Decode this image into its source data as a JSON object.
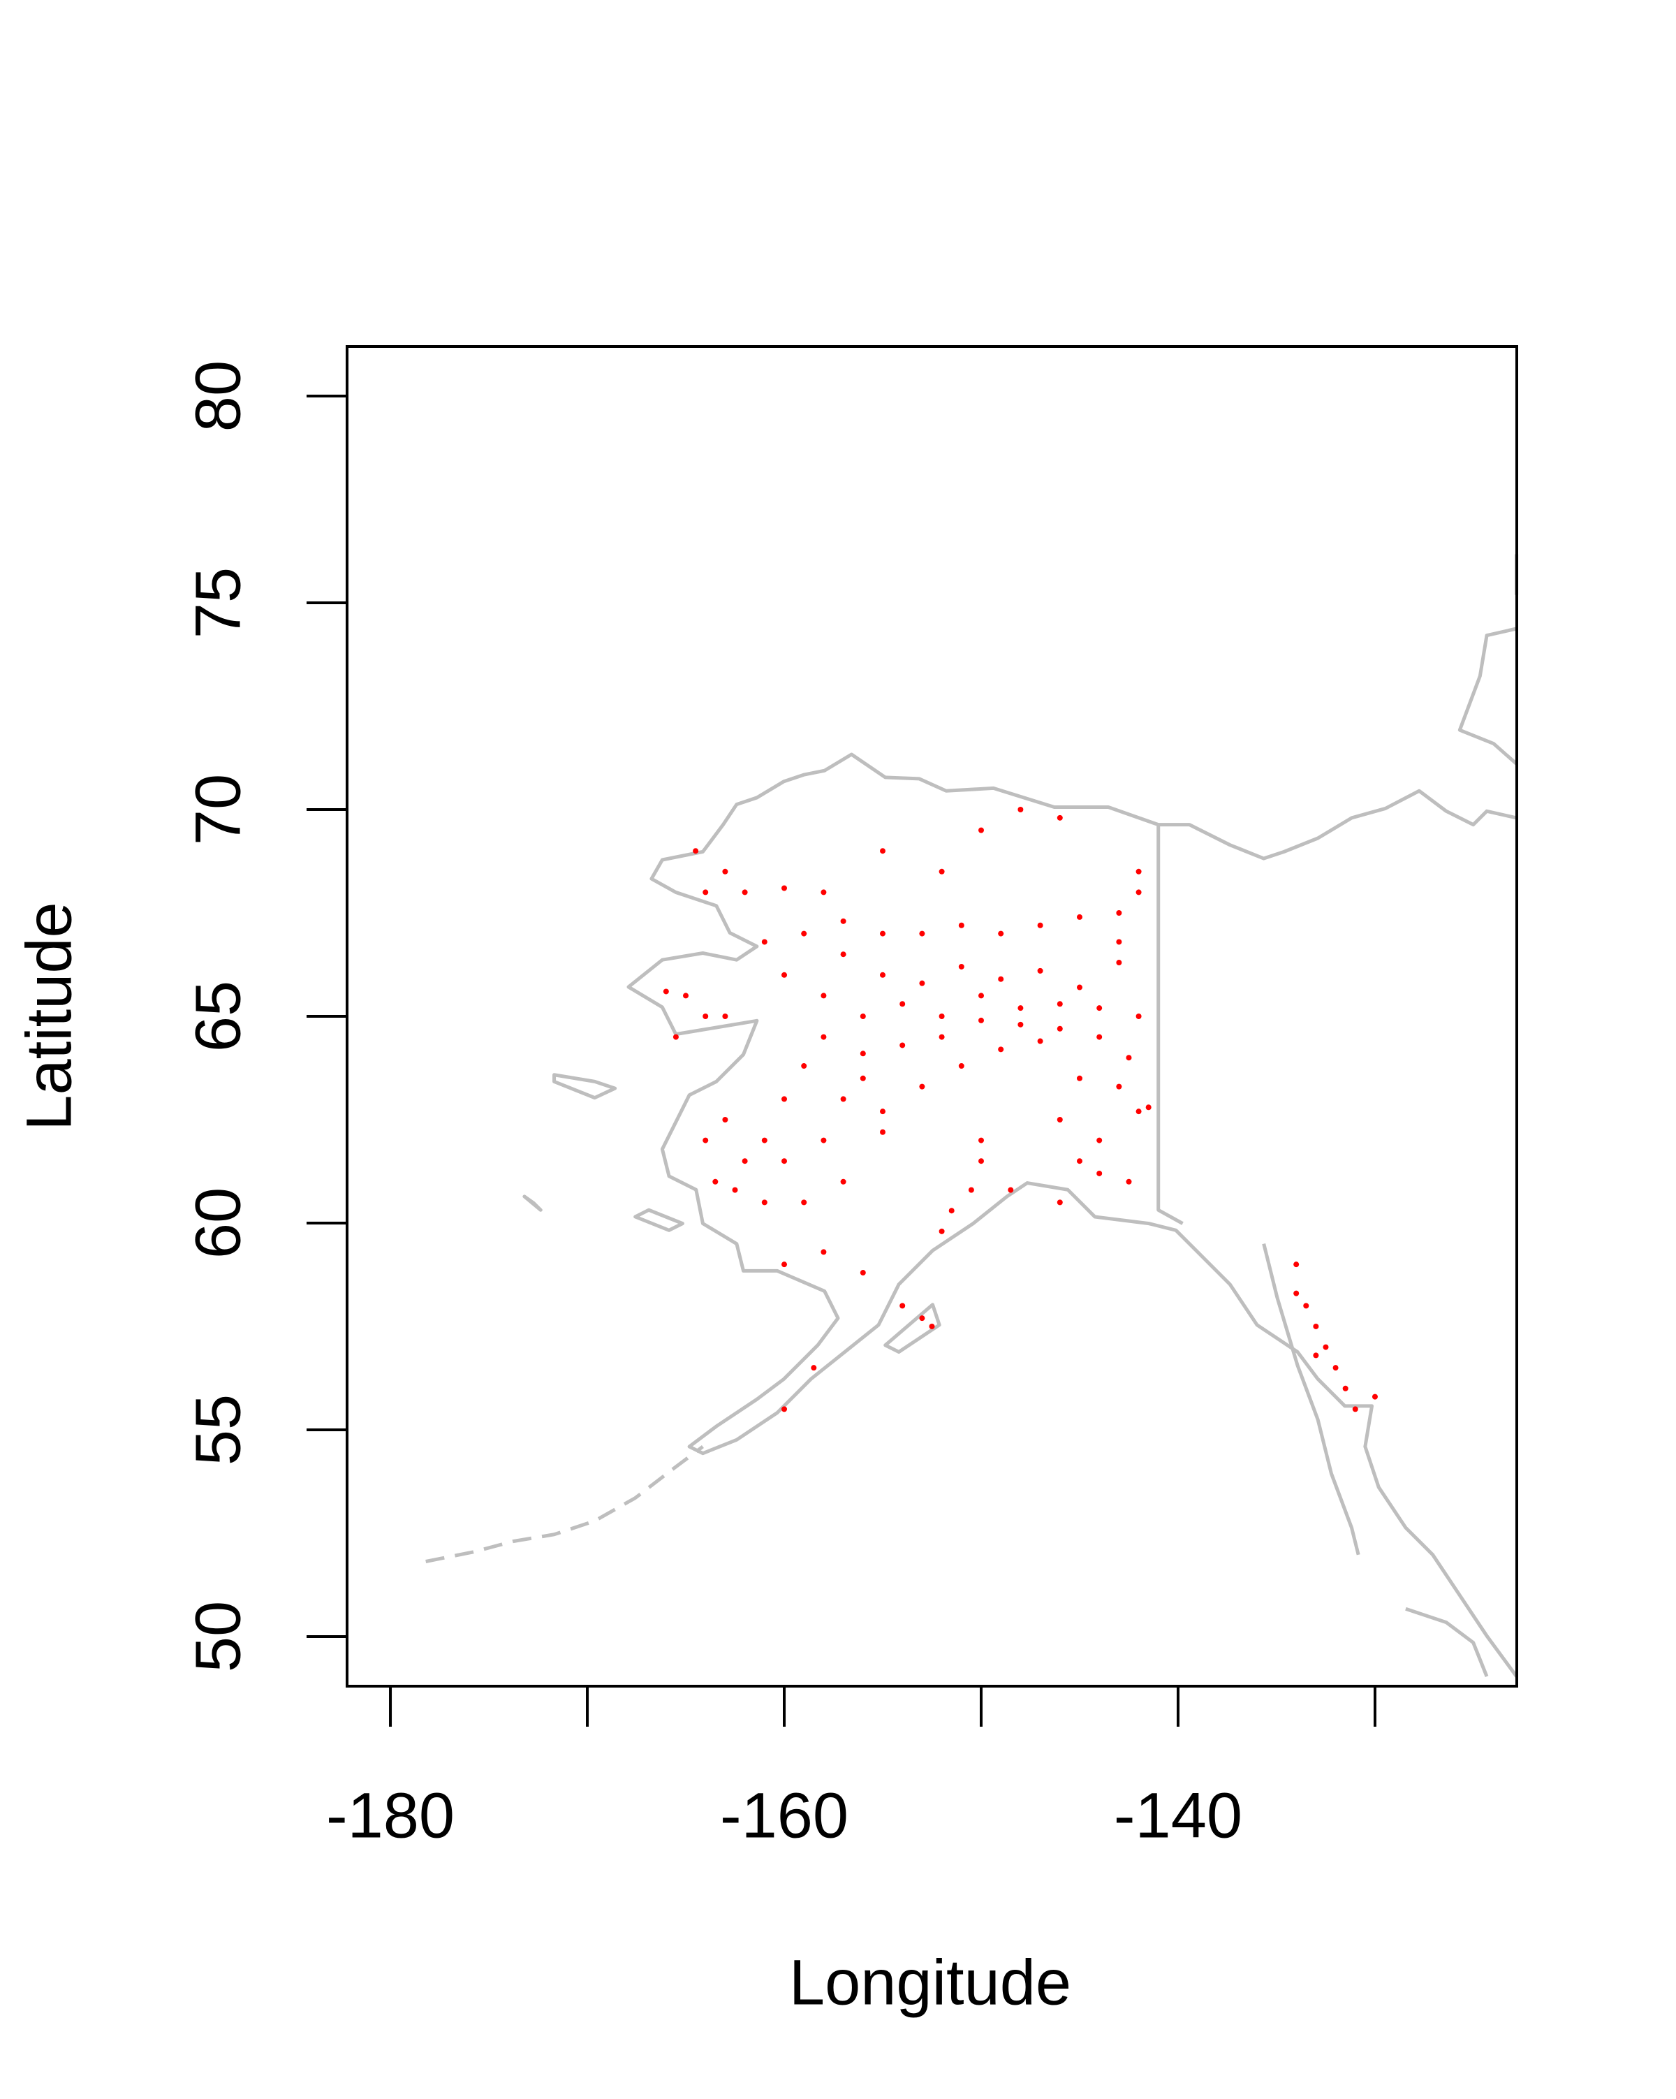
{
  "chart_data": {
    "type": "scatter",
    "x_label": "Longitude",
    "y_label": "Latitude",
    "color": "#ff0000",
    "xlim": [
      -182.2,
      -122.8
    ],
    "ylim": [
      48.8,
      81.2
    ],
    "xticks": [
      -180,
      -160,
      -140
    ],
    "xminor_ticks": [
      -170,
      -150,
      -130
    ],
    "yticks": [
      50,
      55,
      60,
      65,
      70,
      75,
      80
    ],
    "x": [
      -157,
      -155,
      -153,
      -151,
      -149,
      -147,
      -145,
      -143,
      -142,
      -142.5,
      -144,
      -146,
      -148,
      -150,
      -152,
      -154,
      -156,
      -158,
      -160,
      -161,
      -159,
      -157,
      -155,
      -153,
      -151,
      -149,
      -147,
      -145,
      -143,
      -142,
      -142,
      -143,
      -144,
      -146,
      -148,
      -150,
      -152,
      -154,
      -156,
      -158,
      -159,
      -157,
      -155,
      -153,
      -151,
      -149,
      -147,
      -145,
      -143,
      -142,
      -141.5,
      -144,
      -145,
      -142.5,
      -146,
      -150,
      -150.5,
      -151.5,
      -152,
      -150,
      -160,
      -161,
      -162,
      -163,
      -164,
      -162.5,
      -161,
      -163.5,
      -160,
      -158,
      -157,
      -159,
      -158,
      -156,
      -160,
      -155,
      -156,
      -165,
      -164,
      -166,
      -163,
      -165.5,
      -164,
      -162,
      -160,
      -163,
      -164.5,
      -152,
      -150,
      -148,
      -155,
      -146,
      -158,
      -154,
      -153,
      -152.5,
      -134,
      -133.5,
      -133,
      -132.5,
      -132,
      -131.5,
      -131,
      -130,
      -133,
      -134,
      -160,
      -158.5,
      -148.5,
      -146,
      -144
    ],
    "y": [
      66.5,
      66,
      65.8,
      66.2,
      65.9,
      66.1,
      65.7,
      66.3,
      65,
      64,
      64.5,
      64.7,
      65.2,
      65.5,
      65,
      65.3,
      65,
      65.5,
      66,
      66.8,
      67,
      67.3,
      67,
      67,
      67.2,
      67,
      67.2,
      67.4,
      67.5,
      68,
      68.5,
      66.8,
      65.2,
      65.3,
      64.8,
      64.9,
      64.5,
      64.3,
      64.1,
      64.5,
      63.8,
      63,
      62.7,
      63.3,
      63.8,
      64.2,
      64.4,
      63.5,
      63.3,
      62.7,
      62.8,
      62,
      61.5,
      61,
      62.5,
      61.5,
      60.8,
      60.3,
      59.8,
      62,
      63,
      62,
      61.5,
      62.5,
      62,
      60.8,
      60.5,
      61,
      61.5,
      62,
      61,
      60.5,
      59.3,
      58.8,
      59,
      62.2,
      63.5,
      65.5,
      65,
      65.6,
      65,
      64.5,
      68,
      68,
      68.1,
      68.5,
      69,
      68.5,
      69.5,
      70,
      69,
      69.8,
      68,
      58,
      57.7,
      57.5,
      59,
      58,
      57.5,
      57,
      56.5,
      56,
      55.5,
      55.8,
      56.8,
      58.3,
      55.5,
      56.5,
      60.8,
      60.5,
      61.2
    ]
  }
}
